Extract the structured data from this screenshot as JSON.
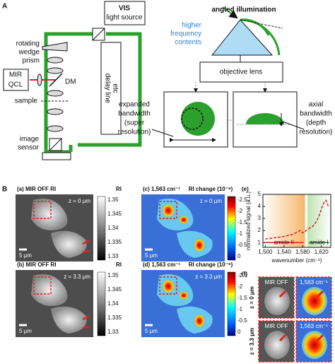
{
  "panel_a": {
    "label": "A",
    "light_source": [
      "VIS",
      "light source"
    ],
    "prism": [
      "rotating",
      "wedge",
      "prism"
    ],
    "laser": [
      "MIR",
      "QCL"
    ],
    "mirror": "DM",
    "sample": "sample",
    "delay": [
      "delay line",
      "etc"
    ],
    "sensor": [
      "image",
      "sensor"
    ],
    "illumination": "angled illumination",
    "frequency": [
      "higher",
      "frequency",
      "contents"
    ],
    "lens": "objective lens",
    "lateral": [
      "expanded",
      "bandwidth",
      "(super",
      "resolution)"
    ],
    "axial": [
      "axial",
      "bandwidth",
      "(depth",
      "resolution)"
    ]
  },
  "panel_b": {
    "label": "B",
    "images": [
      {
        "title": "(a) MIR OFF RI",
        "depth": "z = 0 μm",
        "scale": "5 μm"
      },
      {
        "title": "(c) 1,563 cm⁻¹",
        "depth": "z = 0 μm",
        "scale": "5 μm"
      },
      {
        "title": "(b) MIR OFF RI",
        "depth": "z = 3.3 μm",
        "scale": "5 μm"
      },
      {
        "title": "(d) 1,563 cm⁻¹",
        "depth": "z = 3.3 μm",
        "scale": "5 μm"
      }
    ],
    "ri_bar": {
      "title": "RI",
      "ticks": [
        "1.35",
        "1.345",
        "1.34",
        "1.335",
        "1.33"
      ]
    },
    "change_bar": {
      "title": "RI change (10⁻⁶)",
      "ticks": [
        "-2.5",
        "-2",
        "-1.5",
        "-1",
        "-0.5",
        "0"
      ]
    }
  },
  "panel_e": {
    "type": "line",
    "label": "(e)",
    "x_label": "wavenumber (cm⁻¹)",
    "y_label": "normalized signal (a.u.)",
    "x": [
      1500,
      1510,
      1520,
      1530,
      1540,
      1550,
      1560,
      1565,
      1570,
      1575,
      1580,
      1585,
      1590,
      1595,
      1600,
      1605,
      1610,
      1615,
      1620,
      1625,
      1630,
      1635
    ],
    "values": [
      1.3,
      1.35,
      1.4,
      1.45,
      1.5,
      1.6,
      1.7,
      1.8,
      1.9,
      2.0,
      1.8,
      1.9,
      2.1,
      2.2,
      2.3,
      2.5,
      2.8,
      3.2,
      3.8,
      4.3,
      4.5,
      4.0
    ],
    "color": "#d62728",
    "xlim": [
      1495,
      1640
    ],
    "ylim": [
      0.6,
      5
    ],
    "xticks": [
      {
        "value": 1500,
        "label": "1,500"
      },
      {
        "value": 1540,
        "label": "1,540"
      },
      {
        "value": 1580,
        "label": "1,580"
      },
      {
        "value": 1620,
        "label": "1,620"
      }
    ],
    "yticks": [
      1,
      2,
      3,
      4,
      5
    ],
    "regions": [
      {
        "name": "amide II",
        "from": 1495,
        "to": 1585,
        "color": "#d62728"
      },
      {
        "name": "amide I",
        "from": 1590,
        "to": 1640,
        "color": "#2a8a3a"
      }
    ]
  },
  "panel_f": {
    "label": "(f)",
    "rows": [
      "z = 0 μm",
      "z = 3.3 μm"
    ],
    "columns": [
      "MIR OFF",
      "1,563 cm⁻¹"
    ]
  }
}
